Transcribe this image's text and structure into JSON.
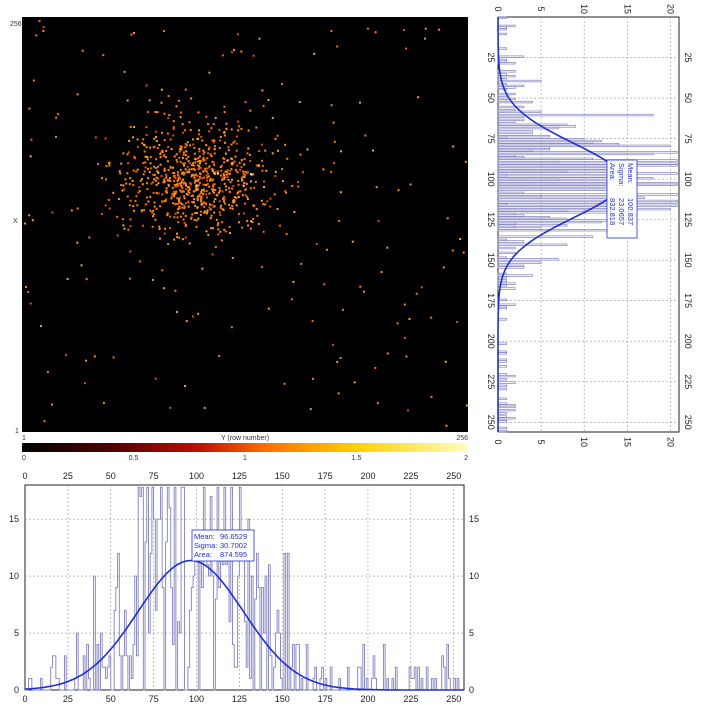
{
  "heatmap": {
    "x_axis_label": "X",
    "y_axis_label": "Y (row number)",
    "x_tick_labels": [
      "1",
      "256"
    ],
    "y_tick_labels": [
      "256",
      "1"
    ],
    "background_color": "#000000",
    "hot_color": "#ff8000",
    "description_cluster_center": [
      100,
      97
    ],
    "description_cluster_sigma": [
      23.0657,
      30.7002
    ]
  },
  "colorbar": {
    "tick_labels": [
      "0",
      "0.5",
      "1",
      "1.5",
      "2"
    ],
    "range": [
      0,
      2
    ]
  },
  "bottom_histogram": {
    "stats": {
      "mean_label": "Mean:",
      "mean_value": "96.6529",
      "sigma_label": "Sigma:",
      "sigma_value": "30.7002",
      "area_label": "Area:",
      "area_value": "874.595"
    },
    "x_ticks": [
      "0",
      "25",
      "50",
      "75",
      "100",
      "125",
      "150",
      "175",
      "200",
      "225",
      "250"
    ],
    "y_ticks": [
      "0",
      "5",
      "10",
      "15"
    ],
    "fit_color": "#2030d0",
    "hist_color": "#8080c0"
  },
  "side_histogram": {
    "stats": {
      "mean_label": "Mean:",
      "mean_value": "100.837",
      "sigma_label": "Sigma:",
      "sigma_value": "23.0657",
      "area_label": "Area:",
      "area_value": "832.818"
    },
    "count_ticks": [
      "0",
      "5",
      "10",
      "15",
      "20"
    ],
    "position_ticks": [
      "25",
      "50",
      "75",
      "100",
      "125",
      "150",
      "175",
      "200",
      "225",
      "250"
    ]
  },
  "chart_data": [
    {
      "type": "heatmap",
      "xlabel": "Y (row number)",
      "ylabel": "X",
      "xlim": [
        1,
        256
      ],
      "ylim": [
        1,
        256
      ],
      "color_range": [
        0,
        2
      ]
    },
    {
      "type": "bar",
      "xlim": [
        0,
        256
      ],
      "ylim": [
        0,
        18
      ],
      "fit": {
        "mean": 96.6529,
        "sigma": 30.7002,
        "area": 874.595
      }
    },
    {
      "type": "bar",
      "xlim": [
        0,
        256
      ],
      "ylim": [
        0,
        21
      ],
      "fit": {
        "mean": 100.837,
        "sigma": 23.0657,
        "area": 832.818
      }
    }
  ]
}
